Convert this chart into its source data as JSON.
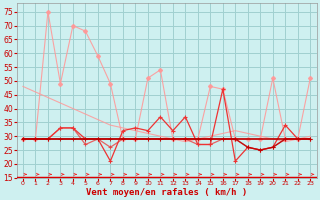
{
  "xlabel": "Vent moyen/en rafales ( km/h )",
  "x": [
    0,
    1,
    2,
    3,
    4,
    5,
    6,
    7,
    8,
    9,
    10,
    11,
    12,
    13,
    14,
    15,
    16,
    17,
    18,
    19,
    20,
    21,
    22,
    23
  ],
  "ylim": [
    15,
    78
  ],
  "yticks": [
    15,
    20,
    25,
    30,
    35,
    40,
    45,
    50,
    55,
    60,
    65,
    70,
    75
  ],
  "bg_color": "#cef0f0",
  "grid_color": "#a0d0d0",
  "line_flat_dark": [
    29,
    29,
    29,
    29,
    29,
    29,
    29,
    29,
    29,
    29,
    29,
    29,
    29,
    29,
    29,
    29,
    29,
    29,
    29,
    29,
    29,
    29,
    29,
    29
  ],
  "line_rafales_spiky": [
    29,
    29,
    75,
    49,
    70,
    68,
    59,
    49,
    29,
    29,
    51,
    54,
    29,
    29,
    29,
    48,
    47,
    29,
    29,
    29,
    51,
    29,
    29,
    51
  ],
  "line_mean_diag": [
    48,
    46,
    44,
    42,
    40,
    38,
    36,
    34,
    33,
    32,
    31,
    30,
    29,
    28,
    29,
    30,
    31,
    32,
    31,
    30,
    29,
    28,
    29,
    30
  ],
  "line_red1": [
    29,
    29,
    29,
    33,
    33,
    29,
    29,
    21,
    32,
    33,
    32,
    37,
    32,
    37,
    27,
    27,
    47,
    21,
    26,
    25,
    26,
    34,
    29,
    29
  ],
  "line_red2": [
    29,
    29,
    29,
    33,
    33,
    27,
    29,
    26,
    29,
    29,
    29,
    29,
    29,
    29,
    27,
    27,
    29,
    29,
    26,
    25,
    26,
    29,
    29,
    29
  ],
  "line_dark2": [
    29,
    29,
    29,
    29,
    29,
    29,
    29,
    29,
    29,
    29,
    29,
    29,
    29,
    29,
    29,
    29,
    29,
    29,
    26,
    25,
    26,
    29,
    29,
    29
  ],
  "col_lightsalmon": "#ff9999",
  "col_medred": "#ee3333",
  "col_darkred": "#bb0000",
  "col_bottombar": "#dd0000"
}
